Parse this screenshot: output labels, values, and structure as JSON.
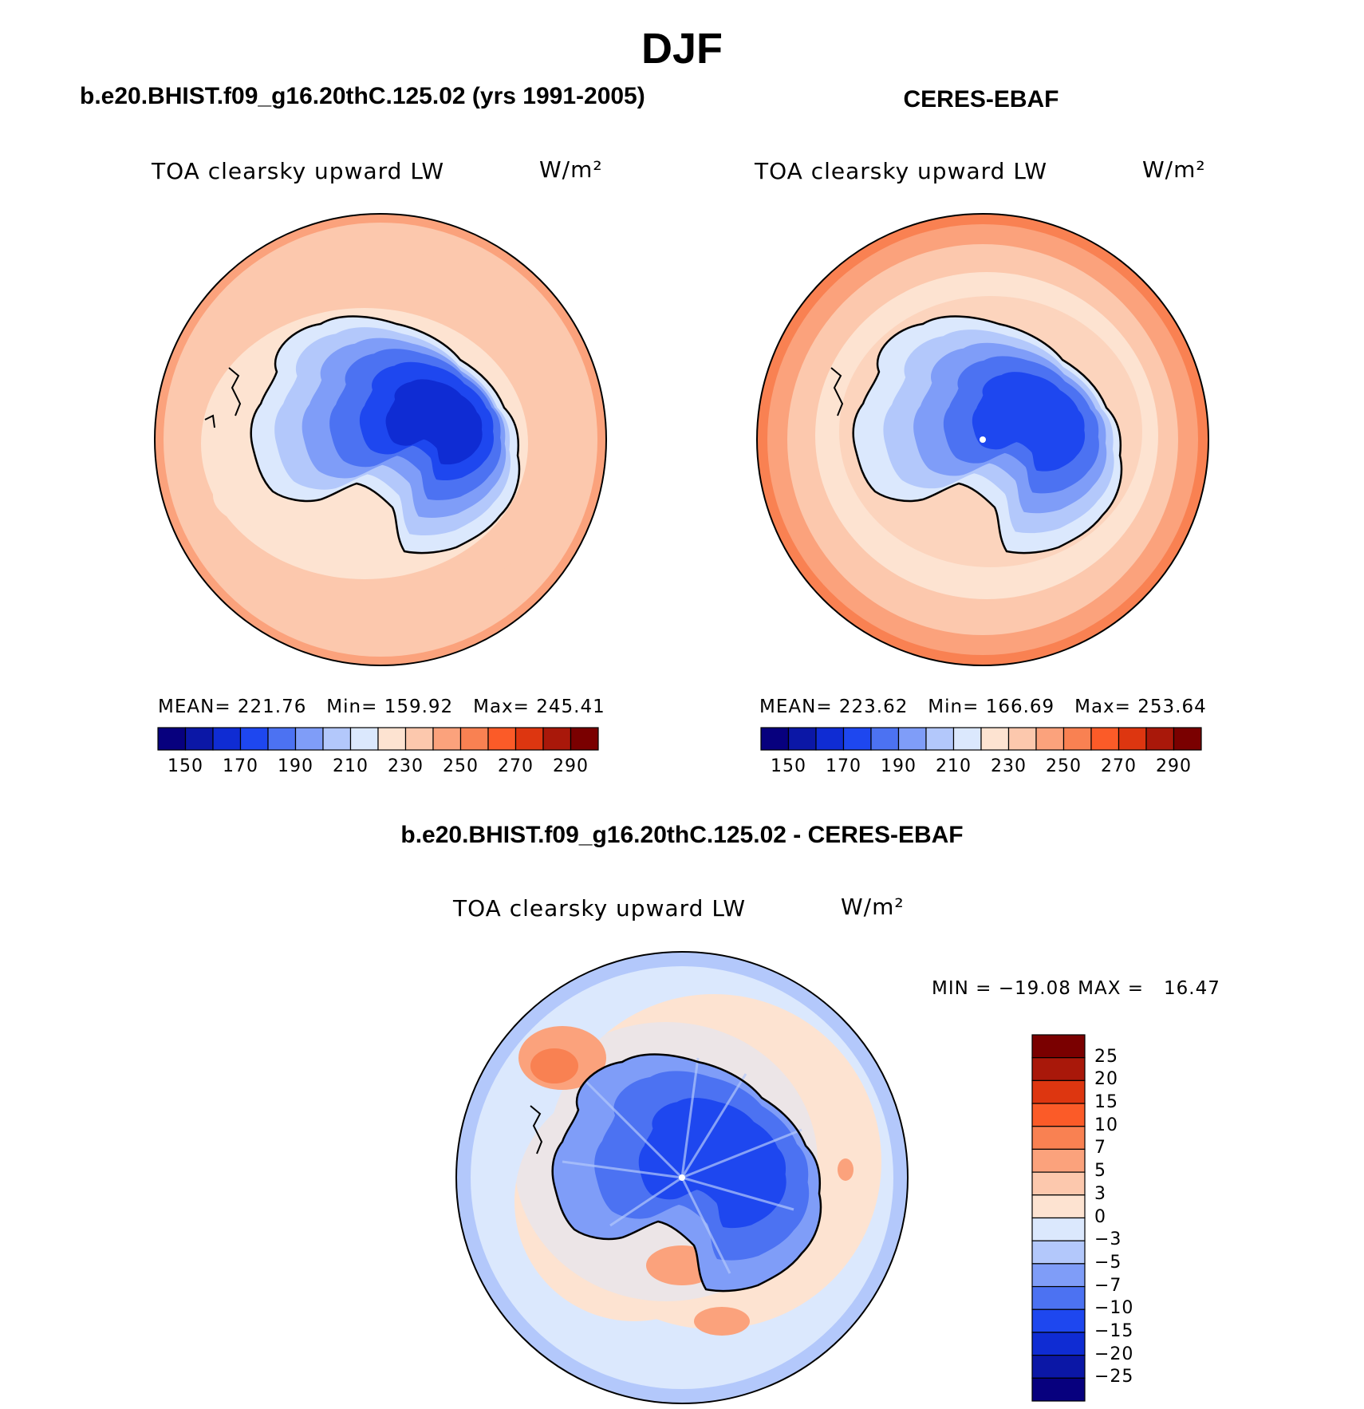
{
  "main_title": "DJF",
  "panels": {
    "model": {
      "title": "b.e20.BHIST.f09_g16.20thC.125.02 (yrs 1991-2005)",
      "variable": "TOA clearsky upward LW",
      "units": "W/m²",
      "stats": "MEAN= 221.76   Min= 159.92   Max= 245.41"
    },
    "obs": {
      "title": "CERES-EBAF",
      "variable": "TOA clearsky upward LW",
      "units": "W/m²",
      "stats": "MEAN= 223.62   Min= 166.69   Max= 253.64"
    },
    "diff": {
      "title": "b.e20.BHIST.f09_g16.20thC.125.02 - CERES-EBAF",
      "variable": "TOA clearsky upward LW",
      "units": "W/m²",
      "stats": "MIN = −19.08 MAX =   16.47"
    }
  },
  "colorbar_main": {
    "tick_labels": [
      "150",
      "170",
      "190",
      "210",
      "230",
      "250",
      "270",
      "290"
    ],
    "colors": [
      "#07007e",
      "#0b17a6",
      "#0f2cd3",
      "#1e47ef",
      "#4c72f2",
      "#7f9df8",
      "#b3c8fb",
      "#dbe8fd",
      "#fde3d1",
      "#fcc8ad",
      "#fba27c",
      "#f98152",
      "#fb5b28",
      "#dd3610",
      "#a9180a",
      "#7a0000"
    ]
  },
  "colorbar_diff": {
    "tick_labels": [
      "25",
      "20",
      "15",
      "10",
      "7",
      "5",
      "3",
      "0",
      "−3",
      "−5",
      "−7",
      "−10",
      "−15",
      "−20",
      "−25"
    ],
    "colors": [
      "#7a0000",
      "#a9180a",
      "#dd3610",
      "#fb5b28",
      "#f98152",
      "#fba27c",
      "#fcc8ad",
      "#fde3d1",
      "#dbe8fd",
      "#b3c8fb",
      "#7f9df8",
      "#4c72f2",
      "#1e47ef",
      "#0f2cd3",
      "#0b17a6",
      "#07007e"
    ]
  }
}
